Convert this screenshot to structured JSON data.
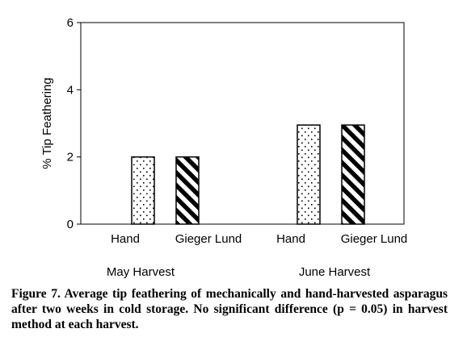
{
  "chart_data": {
    "type": "bar",
    "ylabel": "% Tip Feathering",
    "ylim": [
      0,
      6
    ],
    "yticks": [
      0,
      2,
      4,
      6
    ],
    "groups": [
      {
        "name": "May Harvest",
        "bars": [
          {
            "label": "Hand",
            "value": 2.0,
            "pattern": "dots"
          },
          {
            "label": "Gieger Lund",
            "value": 2.0,
            "pattern": "stripes"
          }
        ]
      },
      {
        "name": "June Harvest",
        "bars": [
          {
            "label": "Hand",
            "value": 2.95,
            "pattern": "dots"
          },
          {
            "label": "Gieger Lund",
            "value": 2.95,
            "pattern": "stripes"
          }
        ]
      }
    ],
    "grid": false,
    "legend": "none"
  },
  "caption": "Figure 7. Average tip feathering of mechanically and hand-harvested asparagus after two weeks in cold storage. No significant difference (p = 0.05) in harvest method at each harvest."
}
